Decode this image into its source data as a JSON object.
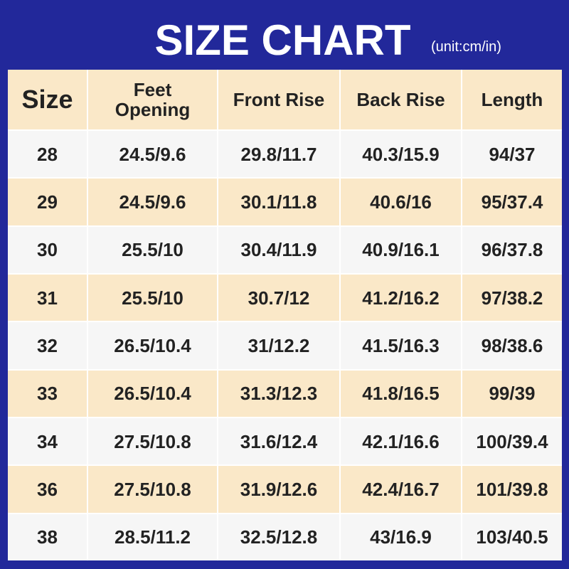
{
  "title": "SIZE CHART",
  "unit": "(unit:cm/in)",
  "colors": {
    "background": "#22289a",
    "header": "#fae8c8",
    "row_alt": "#fae8c8",
    "row": "#f6f6f6",
    "text": "#222222"
  },
  "headers": [
    "Size",
    "Feet\nOpening",
    "Front Rise",
    "Back Rise",
    "Length"
  ],
  "rows": [
    [
      "28",
      "24.5/9.6",
      "29.8/11.7",
      "40.3/15.9",
      "94/37"
    ],
    [
      "29",
      "24.5/9.6",
      "30.1/11.8",
      "40.6/16",
      "95/37.4"
    ],
    [
      "30",
      "25.5/10",
      "30.4/11.9",
      "40.9/16.1",
      "96/37.8"
    ],
    [
      "31",
      "25.5/10",
      "30.7/12",
      "41.2/16.2",
      "97/38.2"
    ],
    [
      "32",
      "26.5/10.4",
      "31/12.2",
      "41.5/16.3",
      "98/38.6"
    ],
    [
      "33",
      "26.5/10.4",
      "31.3/12.3",
      "41.8/16.5",
      "99/39"
    ],
    [
      "34",
      "27.5/10.8",
      "31.6/12.4",
      "42.1/16.6",
      "100/39.4"
    ],
    [
      "36",
      "27.5/10.8",
      "31.9/12.6",
      "42.4/16.7",
      "101/39.8"
    ],
    [
      "38",
      "28.5/11.2",
      "32.5/12.8",
      "43/16.9",
      "103/40.5"
    ]
  ]
}
